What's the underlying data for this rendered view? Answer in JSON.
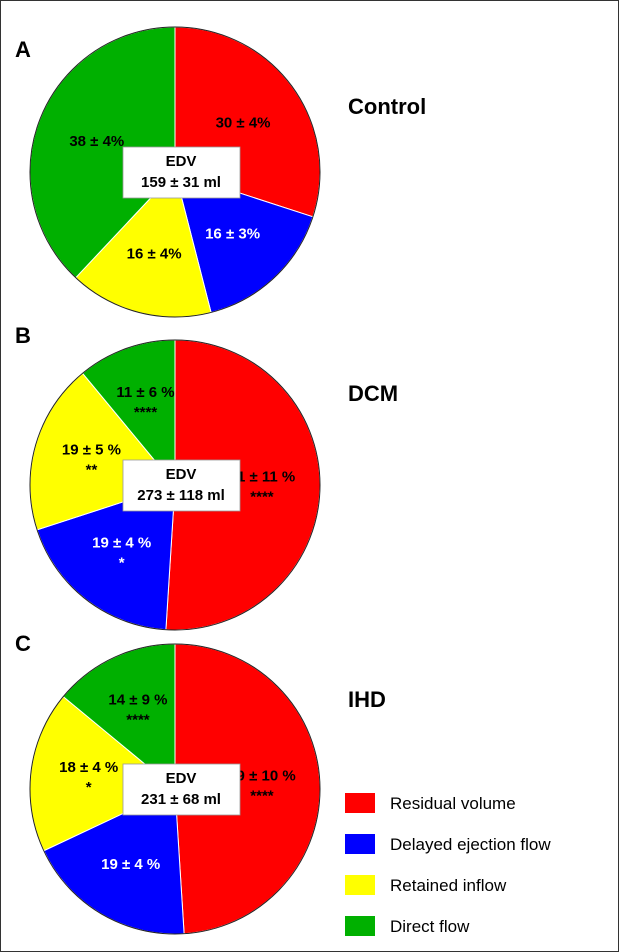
{
  "chart_data": [
    {
      "type": "pie",
      "panel": "A",
      "title": "Control",
      "center_label": [
        "EDV",
        "159 ± 31 ml"
      ],
      "slices": [
        {
          "name": "Residual volume",
          "value": 30,
          "label": "30 ± 4%",
          "significance": "",
          "color": "#ff0000",
          "text_color": "#000000"
        },
        {
          "name": "Delayed ejection flow",
          "value": 16,
          "label": "16 ± 3%",
          "significance": "",
          "color": "#0000ff",
          "text_color": "#ffffff"
        },
        {
          "name": "Retained inflow",
          "value": 16,
          "label": "16 ± 4%",
          "significance": "",
          "color": "#ffff00",
          "text_color": "#000000"
        },
        {
          "name": "Direct flow",
          "value": 38,
          "label": "38 ± 4%",
          "significance": "",
          "color": "#00b000",
          "text_color": "#000000"
        }
      ]
    },
    {
      "type": "pie",
      "panel": "B",
      "title": "DCM",
      "center_label": [
        "EDV",
        "273 ± 118 ml"
      ],
      "slices": [
        {
          "name": "Residual volume",
          "value": 51,
          "label": "51 ± 11 %",
          "significance": "****",
          "color": "#ff0000",
          "text_color": "#000000"
        },
        {
          "name": "Delayed ejection flow",
          "value": 19,
          "label": "19 ± 4 %",
          "significance": "*",
          "color": "#0000ff",
          "text_color": "#ffffff"
        },
        {
          "name": "Retained inflow",
          "value": 19,
          "label": "19 ± 5 %",
          "significance": "**",
          "color": "#ffff00",
          "text_color": "#000000"
        },
        {
          "name": "Direct flow",
          "value": 11,
          "label": "11 ± 6 %",
          "significance": "****",
          "color": "#00b000",
          "text_color": "#000000"
        }
      ]
    },
    {
      "type": "pie",
      "panel": "C",
      "title": "IHD",
      "center_label": [
        "EDV",
        "231 ± 68 ml"
      ],
      "slices": [
        {
          "name": "Residual volume",
          "value": 49,
          "label": "49 ± 10 %",
          "significance": "****",
          "color": "#ff0000",
          "text_color": "#000000"
        },
        {
          "name": "Delayed ejection flow",
          "value": 19,
          "label": "19 ± 4 %",
          "significance": "",
          "color": "#0000ff",
          "text_color": "#ffffff"
        },
        {
          "name": "Retained inflow",
          "value": 18,
          "label": "18 ± 4 %",
          "significance": "*",
          "color": "#ffff00",
          "text_color": "#000000"
        },
        {
          "name": "Direct flow",
          "value": 14,
          "label": "14 ± 9 %",
          "significance": "****",
          "color": "#00b000",
          "text_color": "#000000"
        }
      ]
    }
  ],
  "legend": {
    "placement": "bottom-right",
    "items": [
      {
        "label": "Residual volume",
        "color": "#ff0000"
      },
      {
        "label": "Delayed ejection flow",
        "color": "#0000ff"
      },
      {
        "label": "Retained inflow",
        "color": "#ffff00"
      },
      {
        "label": "Direct flow",
        "color": "#00b000"
      }
    ]
  }
}
